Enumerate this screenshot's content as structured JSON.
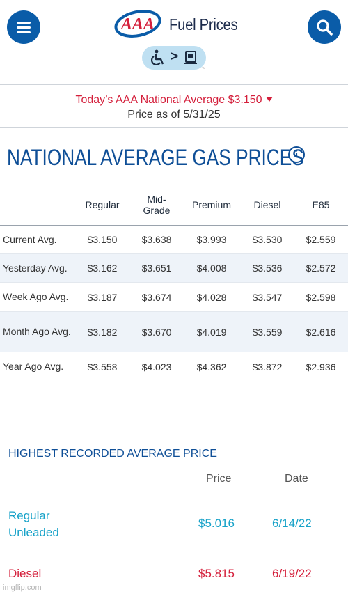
{
  "header": {
    "title": "Fuel Prices",
    "brand": "AAA",
    "menu_icon": "hamburger-menu-icon",
    "search_icon": "search-icon",
    "brand_color": "#0a5ca8",
    "accessibility_widget": {
      "separator": ">",
      "trademark": "™"
    }
  },
  "national_average": {
    "line": "Today’s AAA National Average $3.150",
    "as_of": "Price as of 5/31/25",
    "color": "#d41f3b"
  },
  "section": {
    "title": "NATIONAL AVERAGE GAS PRICES",
    "info_icon": "i"
  },
  "table": {
    "columns": [
      "Regular",
      "Mid-Grade",
      "Premium",
      "Diesel",
      "E85"
    ],
    "rows": [
      {
        "label": "Current Avg.",
        "values": [
          "$3.150",
          "$3.638",
          "$3.993",
          "$3.530",
          "$2.559"
        ]
      },
      {
        "label": "Yesterday Avg.",
        "values": [
          "$3.162",
          "$3.651",
          "$4.008",
          "$3.536",
          "$2.572"
        ]
      },
      {
        "label": "Week Ago Avg.",
        "values": [
          "$3.187",
          "$3.674",
          "$4.028",
          "$3.547",
          "$2.598"
        ]
      },
      {
        "label": "Month Ago Avg.",
        "values": [
          "$3.182",
          "$3.670",
          "$4.019",
          "$3.559",
          "$2.616"
        ]
      },
      {
        "label": "Year Ago Avg.",
        "values": [
          "$3.558",
          "$4.023",
          "$4.362",
          "$3.872",
          "$2.936"
        ]
      }
    ]
  },
  "highest": {
    "title": "HIGHEST RECORDED AVERAGE PRICE",
    "price_header": "Price",
    "date_header": "Date",
    "rows": [
      {
        "label": "Regular Unleaded",
        "price": "$5.016",
        "date": "6/14/22",
        "color": "#17a2c8"
      },
      {
        "label": "Diesel",
        "price": "$5.815",
        "date": "6/19/22",
        "color": "#d41f3b"
      }
    ]
  },
  "watermark": "imgflip.com"
}
